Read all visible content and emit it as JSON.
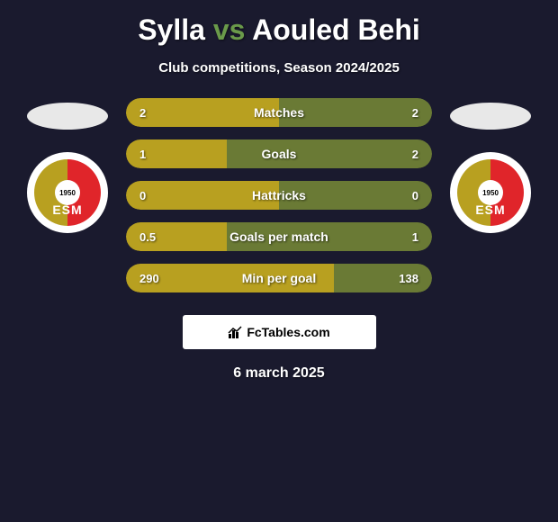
{
  "title_prefix": "Sylla ",
  "title_vs": "vs",
  "title_suffix": " Aouled Behi",
  "subtitle": "Club competitions, Season 2024/2025",
  "date": "6 march 2025",
  "fctables_label": "FcTables.com",
  "colors": {
    "background": "#1a1a2e",
    "left_ellipse": "#e8e8e8",
    "right_ellipse": "#e8e8e8",
    "bar_left": "#b8a020",
    "bar_right": "#6a7a35",
    "title_accent": "#6a9a4a"
  },
  "badge": {
    "year": "1950",
    "letters": "ESM"
  },
  "bars": [
    {
      "label": "Matches",
      "left_val": "2",
      "right_val": "2",
      "left_pct": 50
    },
    {
      "label": "Goals",
      "left_val": "1",
      "right_val": "2",
      "left_pct": 33
    },
    {
      "label": "Hattricks",
      "left_val": "0",
      "right_val": "0",
      "left_pct": 50
    },
    {
      "label": "Goals per match",
      "left_val": "0.5",
      "right_val": "1",
      "left_pct": 33
    },
    {
      "label": "Min per goal",
      "left_val": "290",
      "right_val": "138",
      "left_pct": 68
    }
  ]
}
